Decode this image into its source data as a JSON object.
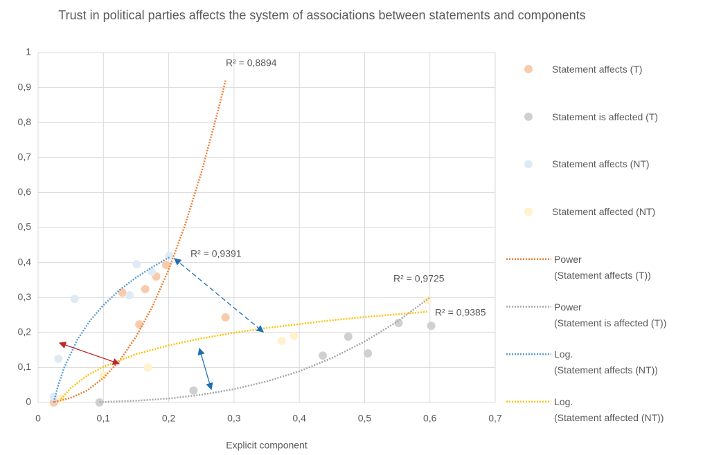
{
  "chart_data": {
    "type": "scatter",
    "title": "Trust in political parties affects the system of associations between statements and components",
    "xlabel": "Explicit component",
    "xlim": [
      0,
      0.7
    ],
    "ylim": [
      0,
      1
    ],
    "xticks": [
      0,
      {
        "value": 0.1,
        "label": "0,1"
      },
      {
        "value": 0.2,
        "label": "0,2"
      },
      {
        "value": 0.3,
        "label": "0,3"
      },
      {
        "value": 0.4,
        "label": "0,4"
      },
      {
        "value": 0.5,
        "label": "0,5"
      },
      {
        "value": 0.6,
        "label": "0,6"
      },
      {
        "value": 0.7,
        "label": "0,7"
      }
    ],
    "yticks": [
      0,
      {
        "value": 0.1,
        "label": "0,1"
      },
      {
        "value": 0.2,
        "label": "0,2"
      },
      {
        "value": 0.3,
        "label": "0,3"
      },
      {
        "value": 0.4,
        "label": "0,4"
      },
      {
        "value": 0.5,
        "label": "0,5"
      },
      {
        "value": 0.6,
        "label": "0,6"
      },
      {
        "value": 0.7,
        "label": "0,7"
      },
      {
        "value": 0.8,
        "label": "0,8"
      },
      {
        "value": 0.9,
        "label": "0,9"
      },
      1
    ],
    "grid": true,
    "legend": "right",
    "annotations": [
      "R² = 0,8894",
      "R² = 0,9391",
      "R² = 0,9725",
      "R² = 0,9385"
    ],
    "series": [
      {
        "name": "Statement affects (T)",
        "mode": "markers",
        "color": "#f8cbad",
        "x": [
          0.024,
          0.129,
          0.155,
          0.164,
          0.181,
          0.196,
          0.287
        ],
        "values": [
          0,
          0.314,
          0.223,
          0.324,
          0.36,
          0.393,
          0.243
        ]
      },
      {
        "name": "Statement is affected (T)",
        "mode": "markers",
        "color": "#d0d0d0",
        "x": [
          0.094,
          0.238,
          0.436,
          0.475,
          0.505,
          0.552,
          0.602
        ],
        "values": [
          0,
          0.034,
          0.134,
          0.188,
          0.14,
          0.227,
          0.219
        ]
      },
      {
        "name": "Statement affects (NT)",
        "mode": "markers",
        "color": "#deebf7",
        "x": [
          0.024,
          0.031,
          0.056,
          0.14,
          0.151,
          0.174,
          0.201
        ],
        "values": [
          0.016,
          0.125,
          0.296,
          0.306,
          0.395,
          0.374,
          0.419
        ]
      },
      {
        "name": "Statement affected (NT)",
        "mode": "markers",
        "color": "#fff2cc",
        "x": [
          0.035,
          0.1,
          0.168,
          0.373,
          0.392,
          0.596
        ],
        "values": [
          0.01,
          0.077,
          0.1,
          0.176,
          0.19,
          0.292
        ]
      },
      {
        "name": "Power\n(Statement affects (T))",
        "mode": "dotted-line",
        "color": "#ed7d31",
        "x": [
          0.025,
          0.05,
          0.075,
          0.1,
          0.125,
          0.15,
          0.175,
          0.2,
          0.225,
          0.25,
          0.275,
          0.287
        ],
        "values": [
          0.002,
          0.013,
          0.034,
          0.07,
          0.12,
          0.188,
          0.274,
          0.38,
          0.507,
          0.657,
          0.83,
          0.92
        ]
      },
      {
        "name": "Power\n(Statement is affected (T))",
        "mode": "dotted-line",
        "color": "#a5a5a5",
        "x": [
          0.094,
          0.15,
          0.2,
          0.25,
          0.3,
          0.35,
          0.4,
          0.45,
          0.5,
          0.55,
          0.6
        ],
        "values": [
          0.001,
          0.005,
          0.011,
          0.022,
          0.038,
          0.06,
          0.089,
          0.127,
          0.174,
          0.231,
          0.3
        ]
      },
      {
        "name": "Log.\n(Statement affects (NT))",
        "mode": "dotted-line",
        "color": "#5b9bd5",
        "x": [
          0.024,
          0.03,
          0.04,
          0.06,
          0.08,
          0.1,
          0.125,
          0.15,
          0.175,
          0.201
        ],
        "values": [
          0,
          0.044,
          0.1,
          0.179,
          0.235,
          0.278,
          0.322,
          0.357,
          0.387,
          0.415
        ]
      },
      {
        "name": "Log.\n(Statement affected (NT))",
        "mode": "dotted-line",
        "color": "#ffc000",
        "x": [
          0.035,
          0.05,
          0.075,
          0.1,
          0.15,
          0.2,
          0.25,
          0.3,
          0.35,
          0.4,
          0.45,
          0.5,
          0.55,
          0.596
        ],
        "values": [
          0.01,
          0.041,
          0.077,
          0.102,
          0.138,
          0.163,
          0.183,
          0.199,
          0.213,
          0.224,
          0.235,
          0.244,
          0.252,
          0.259
        ]
      }
    ]
  }
}
